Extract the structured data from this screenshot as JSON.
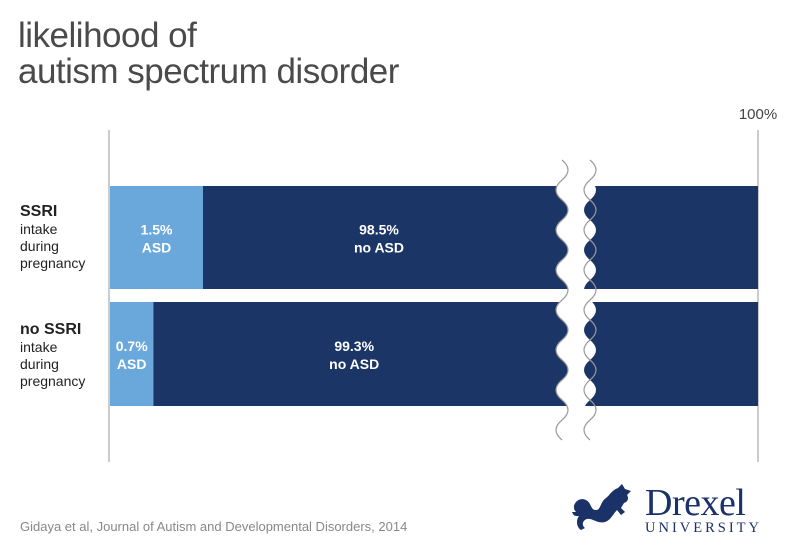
{
  "chart_data": {
    "type": "bar",
    "stacked": true,
    "orientation": "horizontal",
    "title": [
      "likelihood of",
      "autism spectrum disorder"
    ],
    "axis_end_label": "100%",
    "broken_axis": true,
    "categories": [
      {
        "bold": "SSRI",
        "rest": [
          "intake",
          "during",
          "pregnancy"
        ]
      },
      {
        "bold": "no SSRI",
        "rest": [
          "intake",
          "during",
          "pregnancy"
        ]
      }
    ],
    "series": [
      {
        "name": "ASD",
        "color": "#6aa7da",
        "values": [
          1.5,
          0.7
        ],
        "labels": [
          [
            "1.5%",
            "ASD"
          ],
          [
            "0.7%",
            "ASD"
          ]
        ]
      },
      {
        "name": "no ASD",
        "color": "#1b3566",
        "values": [
          98.5,
          99.3
        ],
        "labels": [
          [
            "98.5%",
            "no ASD"
          ],
          [
            "99.3%",
            "no ASD"
          ]
        ]
      }
    ],
    "xlim": [
      0,
      100
    ]
  },
  "source": "Gidaya et al, Journal of Autism and Developmental Disorders, 2014",
  "logo": {
    "name": "Drexel",
    "sub": "UNIVERSITY",
    "color": "#1b3268"
  }
}
